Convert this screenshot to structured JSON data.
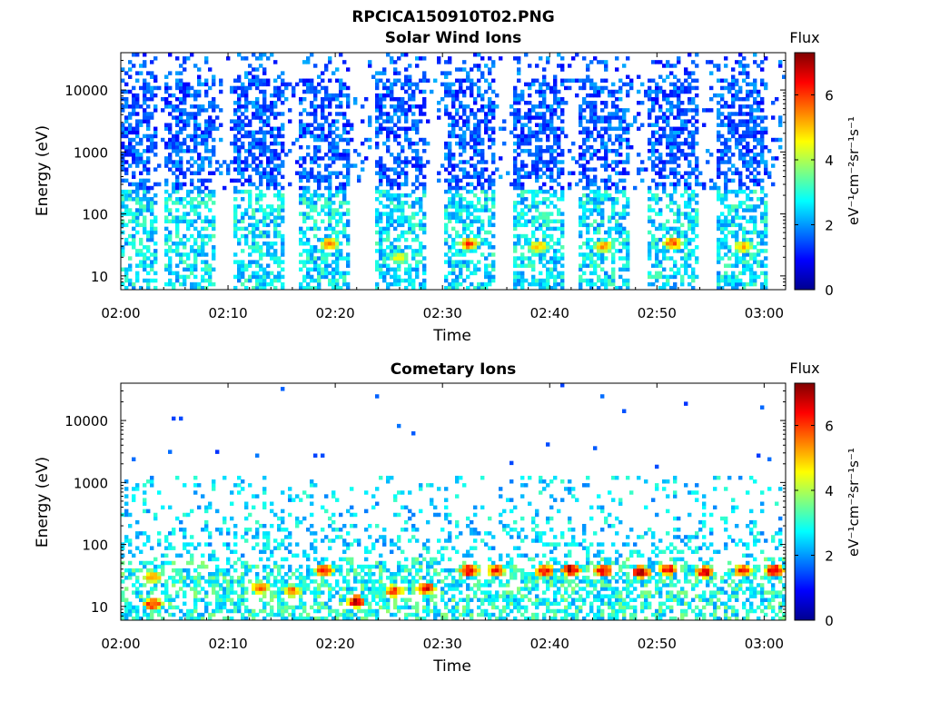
{
  "figure": {
    "title": "RPCICA150910T02.PNG"
  },
  "chart_data": [
    {
      "type": "heatmap",
      "title": "Solar Wind Ions",
      "xlabel": "Time",
      "ylabel": "Energy (eV)",
      "x_ticks": [
        "02:00",
        "02:10",
        "02:20",
        "02:30",
        "02:40",
        "02:50",
        "03:00"
      ],
      "xlim_minutes": [
        0,
        62
      ],
      "y_ticks": [
        "10",
        "100",
        "1000",
        "10000"
      ],
      "ylim": [
        6,
        40000
      ],
      "y_scale": "log",
      "colorbar": {
        "label": "Flux",
        "unit": "eV⁻¹cm⁻²sr⁻¹s⁻¹",
        "range": [
          0,
          7.3
        ],
        "ticks": [
          "0",
          "2",
          "4",
          "6"
        ],
        "colormap": "jet"
      },
      "burst_centers_minutes": [
        1,
        6.5,
        13,
        19,
        26,
        32.5,
        39,
        45,
        51.5,
        58
      ],
      "hotspots": [
        {
          "t": 19.5,
          "e": 33,
          "flux": 5.6
        },
        {
          "t": 32.5,
          "e": 33,
          "flux": 5.8
        },
        {
          "t": 39.0,
          "e": 30,
          "flux": 5.2
        },
        {
          "t": 45.0,
          "e": 30,
          "flux": 5.4
        },
        {
          "t": 51.5,
          "e": 34,
          "flux": 5.9
        },
        {
          "t": 58.0,
          "e": 30,
          "flux": 5.0
        },
        {
          "t": 26.0,
          "e": 20,
          "flux": 4.6
        }
      ]
    },
    {
      "type": "heatmap",
      "title": "Cometary Ions",
      "xlabel": "Time",
      "ylabel": "Energy (eV)",
      "x_ticks": [
        "02:00",
        "02:10",
        "02:20",
        "02:30",
        "02:40",
        "02:50",
        "03:00"
      ],
      "xlim_minutes": [
        0,
        62
      ],
      "y_ticks": [
        "10",
        "100",
        "1000",
        "10000"
      ],
      "ylim": [
        6,
        40000
      ],
      "y_scale": "log",
      "colorbar": {
        "label": "Flux",
        "unit": "eV⁻¹cm⁻²sr⁻¹s⁻¹",
        "range": [
          0,
          7.3
        ],
        "ticks": [
          "0",
          "2",
          "4",
          "6"
        ],
        "colormap": "jet"
      },
      "hotspots": [
        {
          "t": 3.0,
          "e": 30,
          "flux": 5.5
        },
        {
          "t": 3.0,
          "e": 11,
          "flux": 6.2
        },
        {
          "t": 13.0,
          "e": 20,
          "flux": 5.8
        },
        {
          "t": 16.0,
          "e": 18,
          "flux": 5.6
        },
        {
          "t": 19.0,
          "e": 38,
          "flux": 6.4
        },
        {
          "t": 22.0,
          "e": 12,
          "flux": 7.0
        },
        {
          "t": 25.5,
          "e": 18,
          "flux": 6.0
        },
        {
          "t": 28.5,
          "e": 20,
          "flux": 6.6
        },
        {
          "t": 32.5,
          "e": 38,
          "flux": 6.8
        },
        {
          "t": 35.0,
          "e": 38,
          "flux": 6.2
        },
        {
          "t": 39.5,
          "e": 38,
          "flux": 6.5
        },
        {
          "t": 42.0,
          "e": 40,
          "flux": 7.0
        },
        {
          "t": 45.0,
          "e": 38,
          "flux": 6.6
        },
        {
          "t": 48.5,
          "e": 36,
          "flux": 6.9
        },
        {
          "t": 51.0,
          "e": 40,
          "flux": 6.4
        },
        {
          "t": 54.5,
          "e": 36,
          "flux": 6.8
        },
        {
          "t": 58.0,
          "e": 38,
          "flux": 6.3
        },
        {
          "t": 61.0,
          "e": 38,
          "flux": 6.9
        }
      ]
    }
  ]
}
